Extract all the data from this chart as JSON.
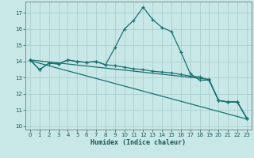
{
  "xlabel": "Humidex (Indice chaleur)",
  "bg_color": "#c8e8e8",
  "grid_color": "#aacece",
  "line_color": "#1a7070",
  "xlim": [
    -0.5,
    23.5
  ],
  "ylim": [
    9.8,
    17.7
  ],
  "yticks": [
    10,
    11,
    12,
    13,
    14,
    15,
    16,
    17
  ],
  "xticks": [
    0,
    1,
    2,
    3,
    4,
    5,
    6,
    7,
    8,
    9,
    10,
    11,
    12,
    13,
    14,
    15,
    16,
    17,
    18,
    19,
    20,
    21,
    22,
    23
  ],
  "line1_x": [
    0,
    1,
    2,
    3,
    4,
    5,
    6,
    7,
    8,
    9,
    10,
    11,
    12,
    13,
    14,
    15,
    16,
    17,
    18,
    19,
    20,
    21,
    22,
    23
  ],
  "line1_y": [
    14.1,
    13.5,
    13.9,
    13.85,
    14.1,
    14.0,
    13.95,
    14.0,
    13.8,
    14.85,
    16.0,
    16.55,
    17.35,
    16.6,
    16.1,
    15.85,
    14.6,
    13.25,
    12.85,
    12.85,
    11.6,
    11.5,
    11.5,
    10.5
  ],
  "line2_x": [
    0,
    1,
    2,
    3,
    4,
    5,
    6,
    7,
    8,
    9,
    10,
    11,
    12,
    13,
    14,
    15,
    16,
    17,
    18,
    19,
    20,
    21,
    22,
    23
  ],
  "line2_y": [
    14.1,
    13.5,
    13.9,
    13.85,
    14.1,
    14.0,
    13.95,
    14.0,
    13.8,
    13.75,
    13.65,
    13.55,
    13.5,
    13.4,
    13.35,
    13.3,
    13.2,
    13.1,
    13.05,
    12.85,
    11.6,
    11.5,
    11.5,
    10.5
  ],
  "line3_x": [
    0,
    19,
    20,
    21,
    22,
    23
  ],
  "line3_y": [
    14.1,
    12.9,
    11.6,
    11.5,
    11.5,
    10.5
  ],
  "line4_x": [
    0,
    23
  ],
  "line4_y": [
    14.05,
    10.45
  ]
}
